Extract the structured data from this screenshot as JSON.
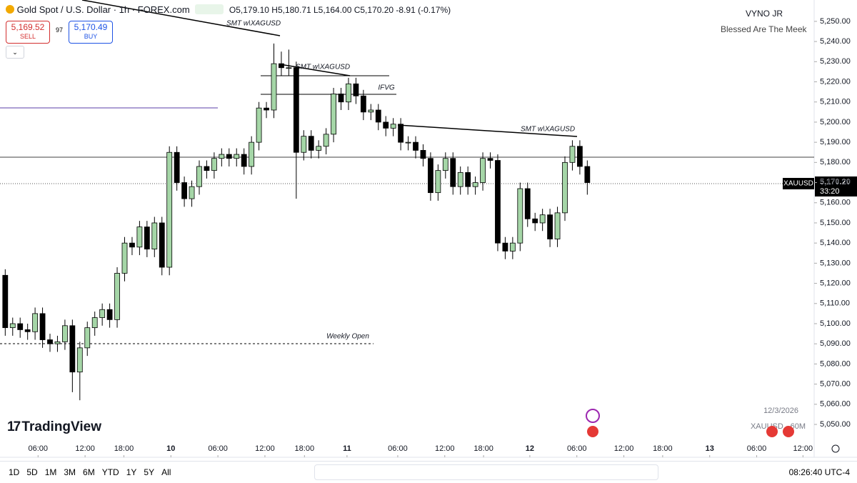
{
  "header": {
    "symbol": "Gold Spot / U.S. Dollar · 1h · FOREX.com",
    "ohlc": "O5,179.10 H5,180.71 L5,164.00 C5,170.20 -8.91 (-0.17%)",
    "sell_price": "5,169.52",
    "sell_label": "SELL",
    "spread": "97",
    "buy_price": "5,170.49",
    "buy_label": "BUY",
    "author": "VYNO JR",
    "tagline": "Blessed Are The Meek"
  },
  "chart_data": {
    "type": "candlestick",
    "up_color": "#a5d6a7",
    "down_color": "#000000",
    "open": [
      5124,
      5098,
      5100,
      5097,
      5096,
      5105,
      5092,
      5090,
      5091,
      5099,
      5076,
      5088,
      5098,
      5103,
      5107,
      5102,
      5125,
      5140,
      5138,
      5148,
      5137,
      5150,
      5128,
      5185,
      5170,
      5162,
      5168,
      5178,
      5176,
      5182,
      5184,
      5182,
      5184,
      5178,
      5190,
      5207,
      5206,
      5229,
      5227,
      5227,
      5185,
      5193,
      5186,
      5188,
      5194,
      5214,
      5210,
      5219,
      5213,
      5205,
      5206,
      5200,
      5197,
      5199,
      5190,
      5190,
      5186,
      5182,
      5165,
      5176,
      5182,
      5168,
      5175,
      5168,
      5170,
      5182,
      5181,
      5140,
      5136,
      5140,
      5167,
      5152,
      5150,
      5154,
      5142,
      5155,
      5180,
      5188,
      5178
    ],
    "high": [
      5127,
      5103,
      5103,
      5100,
      5108,
      5108,
      5095,
      5094,
      5102,
      5102,
      5091,
      5101,
      5106,
      5110,
      5110,
      5128,
      5143,
      5143,
      5151,
      5151,
      5153,
      5153,
      5188,
      5188,
      5173,
      5171,
      5181,
      5181,
      5185,
      5187,
      5187,
      5187,
      5187,
      5193,
      5210,
      5210,
      5239,
      5235,
      5236,
      5230,
      5196,
      5196,
      5191,
      5197,
      5217,
      5217,
      5222,
      5222,
      5216,
      5209,
      5209,
      5203,
      5202,
      5202,
      5193,
      5193,
      5189,
      5185,
      5179,
      5185,
      5185,
      5178,
      5178,
      5173,
      5185,
      5185,
      5184,
      5143,
      5143,
      5170,
      5170,
      5155,
      5157,
      5157,
      5158,
      5183,
      5191,
      5191,
      5181
    ],
    "low": [
      5094,
      5094,
      5093,
      5092,
      5092,
      5088,
      5086,
      5086,
      5087,
      5066,
      5062,
      5084,
      5094,
      5099,
      5098,
      5098,
      5121,
      5134,
      5134,
      5133,
      5133,
      5124,
      5124,
      5166,
      5158,
      5158,
      5164,
      5172,
      5172,
      5178,
      5178,
      5178,
      5174,
      5174,
      5186,
      5202,
      5202,
      5223,
      5223,
      5162,
      5181,
      5182,
      5182,
      5184,
      5190,
      5206,
      5206,
      5209,
      5201,
      5201,
      5196,
      5193,
      5193,
      5186,
      5186,
      5182,
      5178,
      5161,
      5161,
      5172,
      5164,
      5164,
      5164,
      5164,
      5166,
      5177,
      5136,
      5132,
      5132,
      5136,
      5148,
      5146,
      5146,
      5138,
      5138,
      5151,
      5176,
      5174,
      5164
    ],
    "close": [
      5098,
      5100,
      5097,
      5096,
      5105,
      5092,
      5090,
      5091,
      5099,
      5076,
      5088,
      5098,
      5103,
      5107,
      5102,
      5125,
      5140,
      5138,
      5148,
      5137,
      5150,
      5128,
      5185,
      5170,
      5162,
      5168,
      5178,
      5176,
      5182,
      5184,
      5182,
      5184,
      5178,
      5190,
      5207,
      5206,
      5229,
      5227,
      5227,
      5185,
      5193,
      5186,
      5188,
      5194,
      5214,
      5210,
      5219,
      5213,
      5205,
      5206,
      5200,
      5197,
      5199,
      5190,
      5190,
      5186,
      5182,
      5165,
      5176,
      5182,
      5168,
      5175,
      5168,
      5170,
      5182,
      5181,
      5140,
      5136,
      5140,
      5167,
      5152,
      5150,
      5154,
      5142,
      5155,
      5180,
      5188,
      5178,
      5170
    ],
    "xlim": [
      -0.7,
      108.4
    ],
    "xticks": [
      {
        "value": 4.4,
        "label": "06:00"
      },
      {
        "value": 10.7,
        "label": "12:00"
      },
      {
        "value": 15.9,
        "label": "18:00"
      },
      {
        "value": 22.2,
        "label": "10"
      },
      {
        "value": 28.5,
        "label": "06:00"
      },
      {
        "value": 34.8,
        "label": "12:00"
      },
      {
        "value": 40.1,
        "label": "18:00"
      },
      {
        "value": 45.8,
        "label": "11"
      },
      {
        "value": 52.6,
        "label": "06:00"
      },
      {
        "value": 58.9,
        "label": "12:00"
      },
      {
        "value": 64.1,
        "label": "18:00"
      },
      {
        "value": 70.3,
        "label": "12"
      },
      {
        "value": 76.6,
        "label": "06:00"
      },
      {
        "value": 82.9,
        "label": "12:00"
      },
      {
        "value": 88.1,
        "label": "18:00"
      },
      {
        "value": 94.4,
        "label": "13"
      },
      {
        "value": 100.7,
        "label": "06:00"
      },
      {
        "value": 106.9,
        "label": "12:00"
      }
    ],
    "ylim": [
      5033.7,
      5260.6
    ],
    "yticks": [
      {
        "value": 5050,
        "label": "5,050.00"
      },
      {
        "value": 5060,
        "label": "5,060.00"
      },
      {
        "value": 5070,
        "label": "5,070.00"
      },
      {
        "value": 5080,
        "label": "5,080.00"
      },
      {
        "value": 5090,
        "label": "5,090.00"
      },
      {
        "value": 5100,
        "label": "5,100.00"
      },
      {
        "value": 5110,
        "label": "5,110.00"
      },
      {
        "value": 5120,
        "label": "5,120.00"
      },
      {
        "value": 5130,
        "label": "5,130.00"
      },
      {
        "value": 5140,
        "label": "5,140.00"
      },
      {
        "value": 5150,
        "label": "5,150.00"
      },
      {
        "value": 5160,
        "label": "5,160.00"
      },
      {
        "value": 5170,
        "label": "5,170.00"
      },
      {
        "value": 5180,
        "label": "5,180.00"
      },
      {
        "value": 5190,
        "label": "5,190.00"
      },
      {
        "value": 5200,
        "label": "5,200.00"
      },
      {
        "value": 5210,
        "label": "5,210.00"
      },
      {
        "value": 5220,
        "label": "5,220.00"
      },
      {
        "value": 5230,
        "label": "5,230.00"
      },
      {
        "value": 5240,
        "label": "5,240.00"
      },
      {
        "value": 5250,
        "label": "5,250.00"
      }
    ],
    "annotations": [
      "SMT w\\XAGUSD",
      "SMT w\\XAGUSD",
      "IFVG",
      "SMT w\\XAGUSD",
      "Weekly Open"
    ],
    "price_tag": {
      "symbol": "XAUUSD",
      "price": "5,170.20",
      "countdown": "33:20"
    },
    "watermark": {
      "date": "12/3/2026",
      "symbol": "XAUUSD · 60M"
    }
  },
  "brand": "TradingView",
  "toolbar": {
    "ranges": [
      "1D",
      "5D",
      "1M",
      "3M",
      "6M",
      "YTD",
      "1Y",
      "5Y",
      "All"
    ],
    "clock": "08:26:40 UTC-4"
  }
}
